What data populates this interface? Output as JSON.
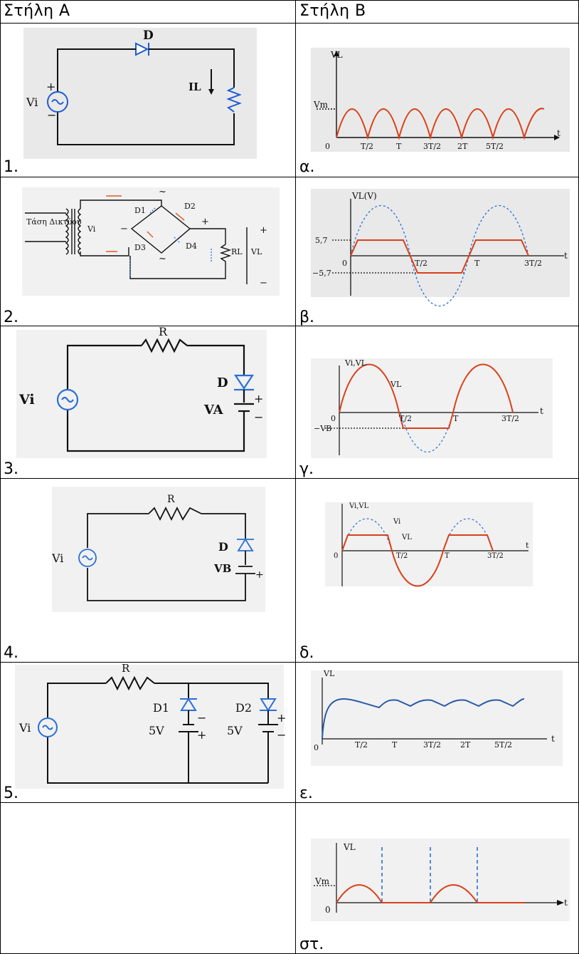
{
  "header": {
    "col_a": "Στήλη A",
    "col_b": "Στήλη B"
  },
  "rows": [
    {
      "a_label": "1.",
      "b_label": "α."
    },
    {
      "a_label": "2.",
      "b_label": "β."
    },
    {
      "a_label": "3.",
      "b_label": "γ."
    },
    {
      "a_label": "4.",
      "b_label": "δ."
    },
    {
      "a_label": "5.",
      "b_label": "ε."
    },
    {
      "a_label": "",
      "b_label": "στ."
    }
  ],
  "circuits": {
    "c1": {
      "diode": "D",
      "source": "Vi",
      "current": "IL"
    },
    "c2": {
      "mains": "Τάση Δικτύου",
      "source": "Vi",
      "d1": "D1",
      "d2": "D2",
      "d3": "D3",
      "d4": "D4",
      "load": "RL",
      "vout": "VL",
      "tilde": "~",
      "plus": "+",
      "minus": "−"
    },
    "c3": {
      "res": "R",
      "diode": "D",
      "source": "Vi",
      "battery": "VA"
    },
    "c4": {
      "res": "R",
      "diode": "D",
      "source": "Vi",
      "battery": "VB"
    },
    "c5": {
      "res": "R",
      "source": "Vi",
      "d1": "D1",
      "d2": "D2",
      "v1": "5V",
      "v2": "5V"
    }
  },
  "graphs": {
    "alpha": {
      "ylabel": "VL",
      "vm": "Vm",
      "origin": "0",
      "xticks": [
        "T/2",
        "T",
        "3T/2",
        "2T",
        "5T/2"
      ],
      "xlabel": "t"
    },
    "beta": {
      "ylabel": "VL(V)",
      "pos": "5,7",
      "neg": "−5,7",
      "origin": "0",
      "xticks": [
        "T/2",
        "T",
        "3T/2"
      ],
      "xlabel": "t"
    },
    "gamma": {
      "ylabel": "Vi,VL",
      "curve": "VL",
      "neg": "−VB",
      "origin": "0",
      "xticks": [
        "T/2",
        "T",
        "3T/2"
      ],
      "xlabel": "t"
    },
    "delta": {
      "ylabel": "Vi,VL",
      "vi": "Vi",
      "vl": "VL",
      "origin": "0",
      "xticks": [
        "T/2",
        "T",
        "3T/2"
      ],
      "xlabel": "t"
    },
    "epsilon": {
      "ylabel": "VL",
      "origin": "0",
      "xticks": [
        "T/2",
        "T",
        "3T/2",
        "2T",
        "5T/2"
      ],
      "xlabel": "t"
    },
    "st": {
      "ylabel": "VL",
      "vm": "Vm",
      "origin": "0",
      "xlabel": "t"
    }
  },
  "colors": {
    "signal": "#d9401a",
    "dashed": "#2a6fd6",
    "wire": "#111111"
  }
}
